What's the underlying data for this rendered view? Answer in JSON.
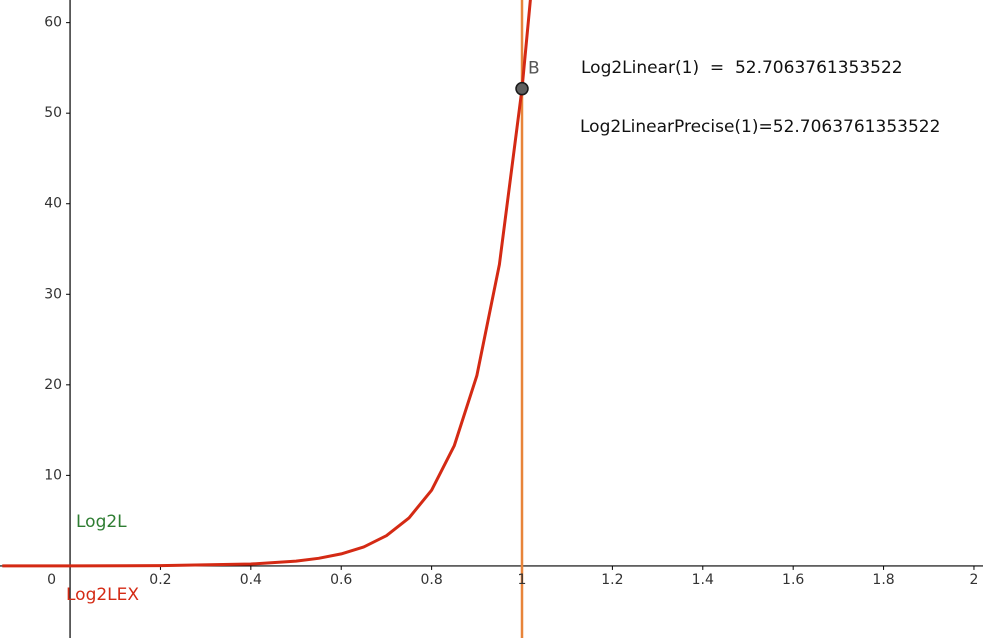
{
  "chart_data": {
    "type": "line",
    "x": [
      -0.15,
      0,
      0.2,
      0.4,
      0.5,
      0.55,
      0.6,
      0.65,
      0.7,
      0.75,
      0.8,
      0.85,
      0.9,
      0.95,
      1,
      1.02
    ],
    "series": [
      {
        "name": "Log2LEX",
        "color": "#d42a14",
        "values": [
          0,
          0,
          0.03,
          0.21,
          0.53,
          0.84,
          1.33,
          2.1,
          3.34,
          5.3,
          8.37,
          13.26,
          21.0,
          33.3,
          52.7,
          63.3
        ]
      }
    ],
    "curve_labels": [
      {
        "text": "Log2L",
        "color": "#2e7d32"
      }
    ],
    "vlines": [
      {
        "x": 1,
        "color": "#e8843a"
      }
    ],
    "points": [
      {
        "label": "B",
        "x": 1,
        "y": 52.7063761353522
      }
    ],
    "annotations": [
      "Log2Linear(1)  =  52.7063761353522",
      "Log2LinearPrecise(1)=52.7063761353522"
    ],
    "xlim": [
      -0.155,
      2.02
    ],
    "ylim": [
      -7.96,
      62.5
    ],
    "xticks": [
      0,
      0.2,
      0.4,
      0.6,
      0.8,
      1,
      1.2,
      1.4,
      1.6,
      1.8,
      2
    ],
    "yticks": [
      10,
      20,
      30,
      40,
      50,
      60
    ],
    "grid": true,
    "minor_subdivisions": 5
  }
}
